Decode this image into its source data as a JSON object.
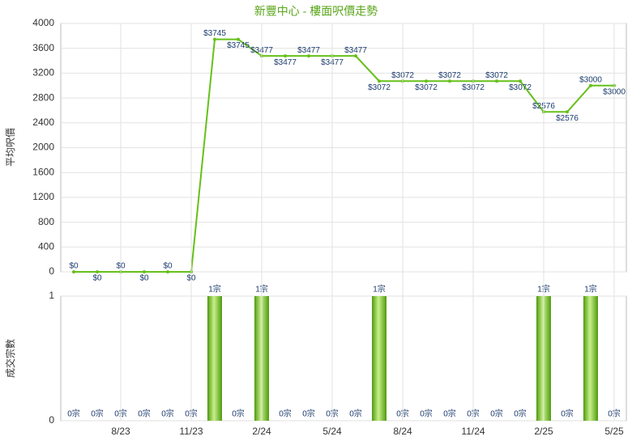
{
  "chart_data": [
    {
      "type": "line",
      "title": "新豐中心 - 樓面呎價走勢",
      "ylabel": "平均呎價",
      "color": "#66c01a",
      "values": [
        0,
        0,
        0,
        0,
        0,
        0,
        3745,
        3745,
        3477,
        3477,
        3477,
        3477,
        3477,
        3072,
        3072,
        3072,
        3072,
        3072,
        3072,
        3072,
        2576,
        2576,
        3000,
        3000
      ],
      "value_labels": [
        "$0",
        "$0",
        "$0",
        "$0",
        "$0",
        "$0",
        "$3745",
        "$3745",
        "$3477",
        "$3477",
        "$3477",
        "$3477",
        "$3477",
        "$3072",
        "$3072",
        "$3072",
        "$3072",
        "$3072",
        "$3072",
        "$3072",
        "$2576",
        "$2576",
        "$3000",
        "$3000"
      ],
      "ylim": [
        0,
        4000
      ],
      "yticks": [
        0,
        400,
        800,
        1200,
        1600,
        2000,
        2400,
        2800,
        3200,
        3600,
        4000
      ],
      "grid": true
    },
    {
      "type": "bar",
      "ylabel": "成交宗數",
      "color": "#6cbf1f",
      "categories": [
        null,
        null,
        "8/23",
        null,
        null,
        "11/23",
        null,
        null,
        "2/24",
        null,
        null,
        "5/24",
        null,
        null,
        "8/24",
        null,
        null,
        "11/24",
        null,
        null,
        "2/25",
        null,
        null,
        "5/25"
      ],
      "values": [
        0,
        0,
        0,
        0,
        0,
        0,
        1,
        0,
        1,
        0,
        0,
        0,
        0,
        1,
        0,
        0,
        0,
        0,
        0,
        0,
        1,
        0,
        1,
        0
      ],
      "value_labels": [
        "0宗",
        "0宗",
        "0宗",
        "0宗",
        "0宗",
        "0宗",
        "1宗",
        "0宗",
        "1宗",
        "0宗",
        "0宗",
        "0宗",
        "0宗",
        "1宗",
        "0宗",
        "0宗",
        "0宗",
        "0宗",
        "0宗",
        "0宗",
        "1宗",
        "0宗",
        "1宗",
        "0宗"
      ],
      "ylim": [
        0,
        1
      ],
      "yticks": [
        0,
        1
      ],
      "grid": true
    }
  ]
}
